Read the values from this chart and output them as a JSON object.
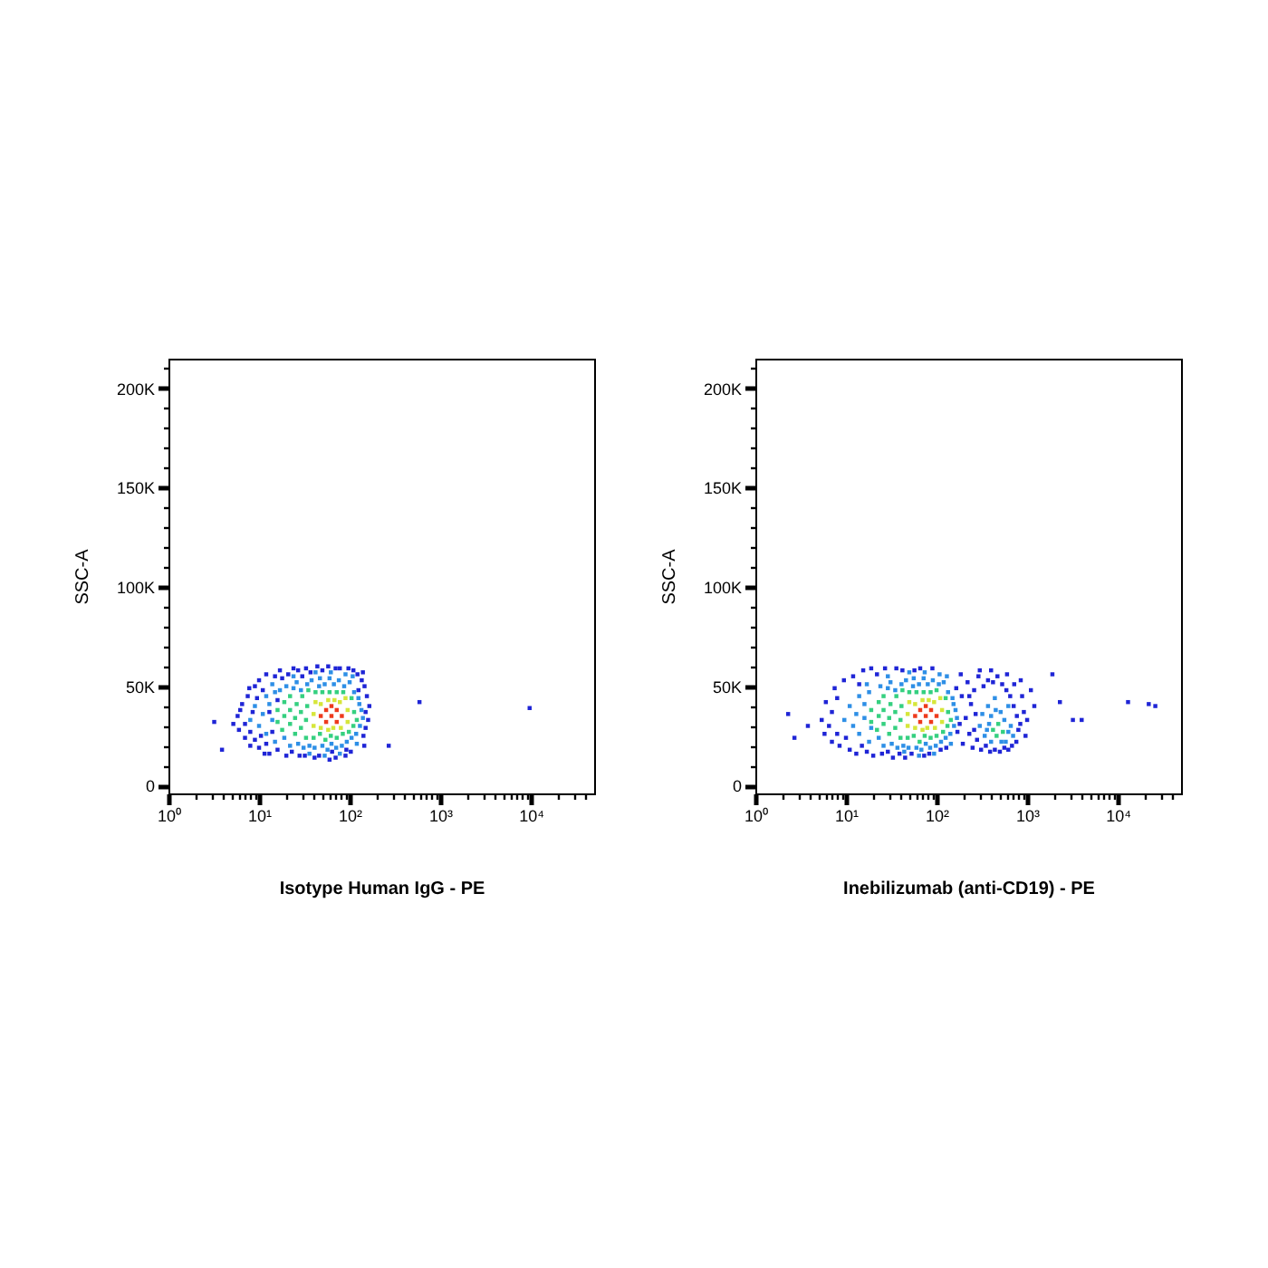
{
  "chart_data": [
    {
      "type": "scatter",
      "xlabel": "Isotype Human IgG - PE",
      "ylabel": "SSC-A",
      "log": "x",
      "marker": "square",
      "xlim": [
        1,
        50000
      ],
      "ylim": [
        -4000,
        215000
      ],
      "xticks": [
        {
          "value": 1,
          "label": "10⁰"
        },
        {
          "value": 2,
          "label": null
        },
        {
          "value": 3,
          "label": null
        },
        {
          "value": 4,
          "label": null
        },
        {
          "value": 5,
          "label": null
        },
        {
          "value": 6,
          "label": null
        },
        {
          "value": 7,
          "label": null
        },
        {
          "value": 8,
          "label": null
        },
        {
          "value": 9,
          "label": null
        },
        {
          "value": 10,
          "label": "10¹"
        },
        {
          "value": 20,
          "label": null
        },
        {
          "value": 30,
          "label": null
        },
        {
          "value": 40,
          "label": null
        },
        {
          "value": 50,
          "label": null
        },
        {
          "value": 60,
          "label": null
        },
        {
          "value": 70,
          "label": null
        },
        {
          "value": 80,
          "label": null
        },
        {
          "value": 90,
          "label": null
        },
        {
          "value": 100,
          "label": "10²"
        },
        {
          "value": 200,
          "label": null
        },
        {
          "value": 300,
          "label": null
        },
        {
          "value": 400,
          "label": null
        },
        {
          "value": 500,
          "label": null
        },
        {
          "value": 600,
          "label": null
        },
        {
          "value": 700,
          "label": null
        },
        {
          "value": 800,
          "label": null
        },
        {
          "value": 900,
          "label": null
        },
        {
          "value": 1000,
          "label": "10³"
        },
        {
          "value": 2000,
          "label": null
        },
        {
          "value": 3000,
          "label": null
        },
        {
          "value": 4000,
          "label": null
        },
        {
          "value": 5000,
          "label": null
        },
        {
          "value": 6000,
          "label": null
        },
        {
          "value": 7000,
          "label": null
        },
        {
          "value": 8000,
          "label": null
        },
        {
          "value": 9000,
          "label": null
        },
        {
          "value": 10000,
          "label": "10⁴"
        },
        {
          "value": 20000,
          "label": null
        },
        {
          "value": 30000,
          "label": null
        },
        {
          "value": 40000,
          "label": null
        }
      ],
      "yticks": [
        0,
        {
          "value": 10000,
          "label": null
        },
        {
          "value": 20000,
          "label": null
        },
        {
          "value": 30000,
          "label": null
        },
        {
          "value": 40000,
          "label": null
        },
        {
          "value": 50000,
          "label": "50K"
        },
        {
          "value": 60000,
          "label": null
        },
        {
          "value": 70000,
          "label": null
        },
        {
          "value": 80000,
          "label": null
        },
        {
          "value": 90000,
          "label": null
        },
        {
          "value": 100000,
          "label": "100K"
        },
        {
          "value": 110000,
          "label": null
        },
        {
          "value": 120000,
          "label": null
        },
        {
          "value": 130000,
          "label": null
        },
        {
          "value": 140000,
          "label": null
        },
        {
          "value": 150000,
          "label": "150K"
        },
        {
          "value": 160000,
          "label": null
        },
        {
          "value": 170000,
          "label": null
        },
        {
          "value": 180000,
          "label": null
        },
        {
          "value": 190000,
          "label": null
        },
        {
          "value": 200000,
          "label": "200K"
        },
        {
          "value": 210000,
          "label": null
        }
      ],
      "series": [
        {
          "color": "#1f25d6",
          "x": [
            3.2,
            3.9,
            270,
            590,
            9700,
            5.8,
            6,
            6.5,
            7,
            7,
            7.5,
            8,
            8,
            8.5,
            9,
            9,
            9.5,
            10,
            10,
            11,
            11.5,
            12,
            12,
            13,
            13,
            14,
            15,
            16,
            16,
            17,
            18,
            20,
            21,
            23,
            24,
            27,
            28,
            30,
            32,
            33,
            37,
            41,
            44,
            46,
            50,
            60,
            58,
            64,
            70,
            70,
            78,
            90,
            92,
            97,
            103,
            110,
            122,
            136,
            142,
            146,
            150,
            155,
            160,
            165,
            150,
            140,
            145,
            6.2,
            7.8,
            5.2,
            10.5,
            125
          ],
          "values": [
            32000,
            18000,
            20000,
            42000,
            39000,
            35000,
            28000,
            41000,
            24000,
            31000,
            45000,
            20000,
            27000,
            37000,
            50000,
            23000,
            44000,
            19000,
            53000,
            48000,
            16000,
            56000,
            21000,
            16000,
            37000,
            27000,
            55000,
            43000,
            18000,
            58000,
            54000,
            15000,
            56000,
            17000,
            59000,
            58000,
            15000,
            55000,
            15000,
            59000,
            57000,
            14000,
            60000,
            15000,
            58000,
            13000,
            60000,
            17000,
            59000,
            14000,
            59000,
            15000,
            18000,
            59000,
            17000,
            58000,
            56000,
            53000,
            25000,
            50000,
            29000,
            45000,
            33000,
            40000,
            37000,
            57000,
            20000,
            38000,
            49000,
            31000,
            25000,
            48000
          ]
        },
        {
          "color": "#2e8fe6",
          "x": [
            10,
            11,
            12,
            13,
            14,
            15,
            15,
            17,
            19,
            20,
            22,
            24,
            26,
            27,
            29,
            31,
            34,
            36,
            38,
            41,
            46,
            47,
            50,
            53,
            57,
            60,
            63,
            67,
            71,
            76,
            82,
            87,
            93,
            100,
            105,
            112,
            118,
            125,
            130,
            135,
            140,
            128,
            120,
            9,
            8,
            12,
            14,
            24,
            42,
            62,
            90,
            108,
            36,
            53,
            78
          ],
          "values": [
            30000,
            36000,
            26000,
            41000,
            33000,
            22000,
            47000,
            48000,
            24000,
            50000,
            20000,
            49000,
            52000,
            21000,
            48000,
            19000,
            51000,
            20000,
            53000,
            19000,
            50000,
            54000,
            20000,
            51000,
            18000,
            54000,
            21000,
            51000,
            19000,
            53000,
            20000,
            50000,
            22000,
            52000,
            24000,
            47000,
            26000,
            44000,
            30000,
            38000,
            34000,
            41000,
            21000,
            40000,
            33000,
            45000,
            51000,
            55000,
            57000,
            57000,
            56000,
            55000,
            16000,
            15000,
            16000
          ]
        },
        {
          "color": "#35d080",
          "x": [
            16,
            16,
            18,
            19,
            19,
            22,
            22,
            22,
            25,
            25,
            26,
            29,
            29,
            30,
            33,
            33,
            34,
            35,
            40,
            47,
            54,
            62,
            72,
            84,
            98,
            42,
            50,
            60,
            72,
            85,
            105,
            110,
            112,
            120
          ],
          "values": [
            32000,
            38000,
            28000,
            35000,
            42000,
            31000,
            38000,
            45000,
            26000,
            34000,
            41000,
            29000,
            37000,
            45000,
            24000,
            33000,
            40000,
            48000,
            24000,
            26000,
            23000,
            25000,
            24000,
            26000,
            27000,
            47000,
            47000,
            47000,
            47000,
            47000,
            44000,
            30000,
            37000,
            33000
          ]
        },
        {
          "color": "#d6e63a",
          "x": [
            40,
            40,
            42,
            48,
            48,
            58,
            58,
            66,
            68,
            80,
            78,
            95,
            95,
            90
          ],
          "values": [
            30000,
            36000,
            42000,
            29000,
            41000,
            28000,
            43000,
            29000,
            43000,
            29000,
            42000,
            32000,
            38000,
            44000
          ]
        },
        {
          "color": "#ee3a1c",
          "x": [
            48,
            55,
            55,
            63,
            72,
            72,
            82,
            63
          ],
          "values": [
            35000,
            32000,
            38000,
            35000,
            32000,
            38000,
            35000,
            40000
          ]
        }
      ]
    },
    {
      "type": "scatter",
      "xlabel": "Inebilizumab (anti-CD19) - PE",
      "ylabel": "SSC-A",
      "log": "x",
      "marker": "square",
      "xlim": [
        1,
        50000
      ],
      "ylim": [
        -4000,
        215000
      ],
      "xticks": [
        {
          "value": 1,
          "label": "10⁰"
        },
        {
          "value": 2,
          "label": null
        },
        {
          "value": 3,
          "label": null
        },
        {
          "value": 4,
          "label": null
        },
        {
          "value": 5,
          "label": null
        },
        {
          "value": 6,
          "label": null
        },
        {
          "value": 7,
          "label": null
        },
        {
          "value": 8,
          "label": null
        },
        {
          "value": 9,
          "label": null
        },
        {
          "value": 10,
          "label": "10¹"
        },
        {
          "value": 20,
          "label": null
        },
        {
          "value": 30,
          "label": null
        },
        {
          "value": 40,
          "label": null
        },
        {
          "value": 50,
          "label": null
        },
        {
          "value": 60,
          "label": null
        },
        {
          "value": 70,
          "label": null
        },
        {
          "value": 80,
          "label": null
        },
        {
          "value": 90,
          "label": null
        },
        {
          "value": 100,
          "label": "10²"
        },
        {
          "value": 200,
          "label": null
        },
        {
          "value": 300,
          "label": null
        },
        {
          "value": 400,
          "label": null
        },
        {
          "value": 500,
          "label": null
        },
        {
          "value": 600,
          "label": null
        },
        {
          "value": 700,
          "label": null
        },
        {
          "value": 800,
          "label": null
        },
        {
          "value": 900,
          "label": null
        },
        {
          "value": 1000,
          "label": "10³"
        },
        {
          "value": 2000,
          "label": null
        },
        {
          "value": 3000,
          "label": null
        },
        {
          "value": 4000,
          "label": null
        },
        {
          "value": 5000,
          "label": null
        },
        {
          "value": 6000,
          "label": null
        },
        {
          "value": 7000,
          "label": null
        },
        {
          "value": 8000,
          "label": null
        },
        {
          "value": 9000,
          "label": null
        },
        {
          "value": 10000,
          "label": "10⁴"
        },
        {
          "value": 20000,
          "label": null
        },
        {
          "value": 30000,
          "label": null
        },
        {
          "value": 40000,
          "label": null
        }
      ],
      "yticks": [
        0,
        {
          "value": 10000,
          "label": null
        },
        {
          "value": 20000,
          "label": null
        },
        {
          "value": 30000,
          "label": null
        },
        {
          "value": 40000,
          "label": null
        },
        {
          "value": 50000,
          "label": "50K"
        },
        {
          "value": 60000,
          "label": null
        },
        {
          "value": 70000,
          "label": null
        },
        {
          "value": 80000,
          "label": null
        },
        {
          "value": 90000,
          "label": null
        },
        {
          "value": 100000,
          "label": "100K"
        },
        {
          "value": 110000,
          "label": null
        },
        {
          "value": 120000,
          "label": null
        },
        {
          "value": 130000,
          "label": null
        },
        {
          "value": 140000,
          "label": null
        },
        {
          "value": 150000,
          "label": "150K"
        },
        {
          "value": 160000,
          "label": null
        },
        {
          "value": 170000,
          "label": null
        },
        {
          "value": 180000,
          "label": null
        },
        {
          "value": 190000,
          "label": null
        },
        {
          "value": 200000,
          "label": "200K"
        },
        {
          "value": 210000,
          "label": null
        }
      ],
      "series": [
        {
          "color": "#1f25d6",
          "x": [
            2.3,
            2.7,
            3.8,
            1900,
            2300,
            3200,
            4000,
            13000,
            22000,
            26000,
            5.4,
            5.8,
            6,
            6.5,
            7,
            7,
            7.5,
            8,
            8,
            8.5,
            9.5,
            10,
            11,
            12,
            13,
            14,
            15,
            15.5,
            17,
            19,
            20,
            22,
            25,
            27,
            29,
            33,
            36,
            39,
            42,
            45,
            53,
            57,
            66,
            73,
            83,
            90,
            111,
            128,
            165,
            170,
            180,
            185,
            190,
            195,
            210,
            220,
            230,
            240,
            250,
            260,
            270,
            280,
            290,
            310,
            330,
            350,
            370,
            390,
            420,
            440,
            470,
            500,
            530,
            560,
            590,
            620,
            650,
            680,
            710,
            760,
            770,
            800,
            840,
            880,
            920,
            960,
            1000,
            1100,
            1200,
            720,
            850,
            600,
            400,
            300,
            260,
            230
          ],
          "values": [
            36000,
            24000,
            30000,
            56000,
            42000,
            33000,
            33000,
            42000,
            41000,
            40000,
            33000,
            26000,
            42000,
            30000,
            22000,
            37000,
            49000,
            26000,
            44000,
            20000,
            53000,
            24000,
            18000,
            55000,
            16000,
            51000,
            20000,
            58000,
            17000,
            59000,
            15000,
            56000,
            16000,
            59000,
            17000,
            14000,
            59000,
            16000,
            58000,
            14000,
            16000,
            58000,
            59000,
            15000,
            16000,
            59000,
            18000,
            19000,
            49000,
            27000,
            31000,
            56000,
            45000,
            21000,
            34000,
            52000,
            26000,
            41000,
            19000,
            48000,
            36000,
            23000,
            55000,
            18000,
            50000,
            20000,
            53000,
            17000,
            52000,
            18000,
            55000,
            17000,
            51000,
            19000,
            48000,
            18000,
            45000,
            20000,
            40000,
            22000,
            35000,
            28000,
            31000,
            45000,
            37000,
            25000,
            33000,
            48000,
            40000,
            51000,
            53000,
            56000,
            58000,
            58000,
            28000,
            45000
          ]
        },
        {
          "color": "#2e8fe6",
          "x": [
            12,
            13,
            14,
            16,
            16,
            18,
            18,
            19,
            23,
            24,
            26,
            29,
            31,
            32,
            35,
            37,
            41,
            43,
            46,
            49,
            55,
            56,
            60,
            64,
            68,
            72,
            76,
            80,
            85,
            91,
            98,
            106,
            112,
            120,
            126,
            134,
            142,
            150,
            156,
            162,
            168,
            154,
            144,
            11,
            9.6,
            14,
            17,
            29,
            50,
            74,
            108,
            130,
            44,
            64,
            94,
            300,
            320,
            340,
            360,
            370,
            380,
            400,
            400,
            440,
            450,
            510,
            520,
            560,
            580,
            620,
            620,
            660,
            700
          ],
          "values": [
            30000,
            36000,
            26000,
            41000,
            34000,
            22000,
            47000,
            29000,
            24000,
            50000,
            20000,
            49000,
            52000,
            21000,
            48000,
            19000,
            51000,
            20000,
            53000,
            19000,
            50000,
            54000,
            19000,
            51000,
            18000,
            54000,
            21000,
            51000,
            19000,
            53000,
            20000,
            51000,
            22000,
            52000,
            24000,
            47000,
            26000,
            44000,
            30000,
            38000,
            34000,
            41000,
            21000,
            40000,
            33000,
            45000,
            51000,
            55000,
            57000,
            57000,
            56000,
            55000,
            17000,
            15000,
            16000,
            30000,
            36000,
            25000,
            28000,
            40000,
            31000,
            22000,
            35000,
            44000,
            38000,
            37000,
            22000,
            33000,
            22000,
            27000,
            40000,
            30000,
            25000
          ]
        },
        {
          "color": "#35d080",
          "x": [
            19,
            19,
            22,
            23,
            23,
            26,
            26,
            26,
            30,
            30,
            31,
            35,
            35,
            36,
            40,
            40,
            41,
            42,
            48,
            56,
            65,
            74,
            86,
            100,
            118,
            50,
            60,
            72,
            86,
            100,
            126,
            132,
            134,
            144,
            420,
            480,
            540,
            460
          ],
          "values": [
            32000,
            38000,
            28000,
            35000,
            42000,
            31000,
            38000,
            45000,
            26000,
            34000,
            41000,
            29000,
            37000,
            45000,
            24000,
            33000,
            40000,
            48000,
            24000,
            25000,
            22000,
            25000,
            24000,
            25000,
            27000,
            47000,
            47000,
            47000,
            47000,
            48000,
            44000,
            30000,
            37000,
            33000,
            28000,
            31000,
            27000,
            25000
          ]
        },
        {
          "color": "#d6e63a",
          "x": [
            48,
            48,
            50,
            58,
            58,
            70,
            70,
            79,
            82,
            96,
            94,
            115,
            115,
            110
          ],
          "values": [
            30000,
            36000,
            42000,
            29000,
            41000,
            28000,
            43000,
            29000,
            43000,
            29000,
            42000,
            32000,
            38000,
            44000
          ]
        },
        {
          "color": "#ee3a1c",
          "x": [
            58,
            66,
            66,
            76,
            87,
            87,
            100,
            76
          ],
          "values": [
            35000,
            32000,
            38000,
            35000,
            32000,
            38000,
            35000,
            40000
          ]
        }
      ]
    }
  ]
}
